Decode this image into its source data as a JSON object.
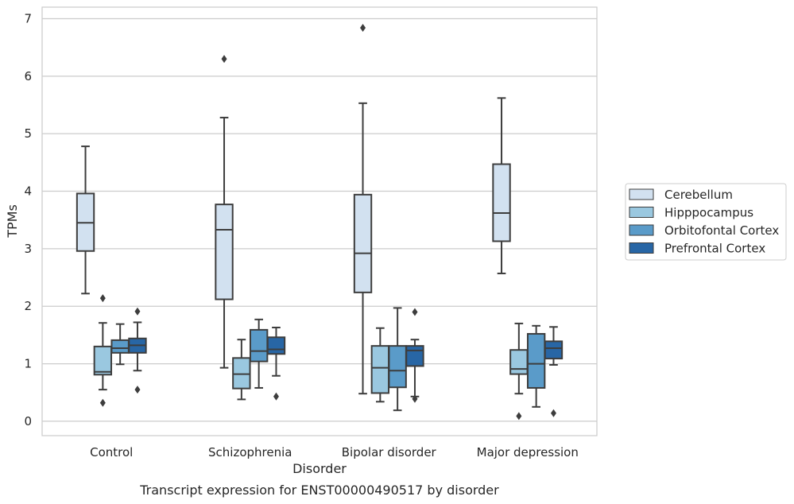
{
  "chart_data": {
    "type": "box",
    "caption": "Transcript expression for ENST00000490517 by disorder",
    "xlabel": "Disorder",
    "ylabel": "TPMs",
    "ylim": [
      -0.25,
      7.2
    ],
    "yticks": [
      0,
      1,
      2,
      3,
      4,
      5,
      6,
      7
    ],
    "grid": "horizontal",
    "legend_placement": "right",
    "categories": [
      "Control",
      "Schizophrenia",
      "Bipolar disorder",
      "Major depression"
    ],
    "series": [
      {
        "name": "Cerebellum",
        "color": "#d2e1f0",
        "boxes": [
          {
            "whisker_low": 2.22,
            "q1": 2.96,
            "median": 3.45,
            "q3": 3.96,
            "whisker_high": 4.78,
            "outliers": []
          },
          {
            "whisker_low": 0.93,
            "q1": 2.12,
            "median": 3.33,
            "q3": 3.77,
            "whisker_high": 5.28,
            "outliers": [
              6.3
            ]
          },
          {
            "whisker_low": 0.48,
            "q1": 2.24,
            "median": 2.92,
            "q3": 3.94,
            "whisker_high": 5.53,
            "outliers": [
              6.84
            ]
          },
          {
            "whisker_low": 2.57,
            "q1": 3.13,
            "median": 3.62,
            "q3": 4.47,
            "whisker_high": 5.62,
            "outliers": []
          }
        ]
      },
      {
        "name": "Hipppocampus",
        "color": "#9ac8e0",
        "boxes": [
          {
            "whisker_low": 0.55,
            "q1": 0.81,
            "median": 0.86,
            "q3": 1.3,
            "whisker_high": 1.71,
            "outliers": [
              2.14,
              0.32
            ]
          },
          {
            "whisker_low": 0.38,
            "q1": 0.57,
            "median": 0.82,
            "q3": 1.1,
            "whisker_high": 1.42,
            "outliers": []
          },
          {
            "whisker_low": 0.34,
            "q1": 0.49,
            "median": 0.93,
            "q3": 1.31,
            "whisker_high": 1.62,
            "outliers": []
          },
          {
            "whisker_low": 0.48,
            "q1": 0.82,
            "median": 0.91,
            "q3": 1.24,
            "whisker_high": 1.7,
            "outliers": [
              0.09
            ]
          }
        ]
      },
      {
        "name": "Orbitofontal Cortex",
        "color": "#5a9bc9",
        "boxes": [
          {
            "whisker_low": 0.99,
            "q1": 1.19,
            "median": 1.27,
            "q3": 1.41,
            "whisker_high": 1.69,
            "outliers": []
          },
          {
            "whisker_low": 0.58,
            "q1": 1.04,
            "median": 1.22,
            "q3": 1.59,
            "whisker_high": 1.77,
            "outliers": []
          },
          {
            "whisker_low": 0.19,
            "q1": 0.59,
            "median": 0.88,
            "q3": 1.31,
            "whisker_high": 1.97,
            "outliers": []
          },
          {
            "whisker_low": 0.25,
            "q1": 0.58,
            "median": 1.0,
            "q3": 1.52,
            "whisker_high": 1.66,
            "outliers": []
          }
        ]
      },
      {
        "name": "Prefrontal Cortex",
        "color": "#2866a5",
        "boxes": [
          {
            "whisker_low": 0.88,
            "q1": 1.19,
            "median": 1.32,
            "q3": 1.44,
            "whisker_high": 1.72,
            "outliers": [
              1.91,
              0.55
            ]
          },
          {
            "whisker_low": 0.79,
            "q1": 1.17,
            "median": 1.25,
            "q3": 1.46,
            "whisker_high": 1.63,
            "outliers": [
              0.43
            ]
          },
          {
            "whisker_low": 0.43,
            "q1": 0.96,
            "median": 1.23,
            "q3": 1.31,
            "whisker_high": 1.42,
            "outliers": [
              1.9,
              0.39
            ]
          },
          {
            "whisker_low": 0.98,
            "q1": 1.09,
            "median": 1.27,
            "q3": 1.39,
            "whisker_high": 1.64,
            "outliers": [
              0.14
            ]
          }
        ]
      }
    ]
  }
}
